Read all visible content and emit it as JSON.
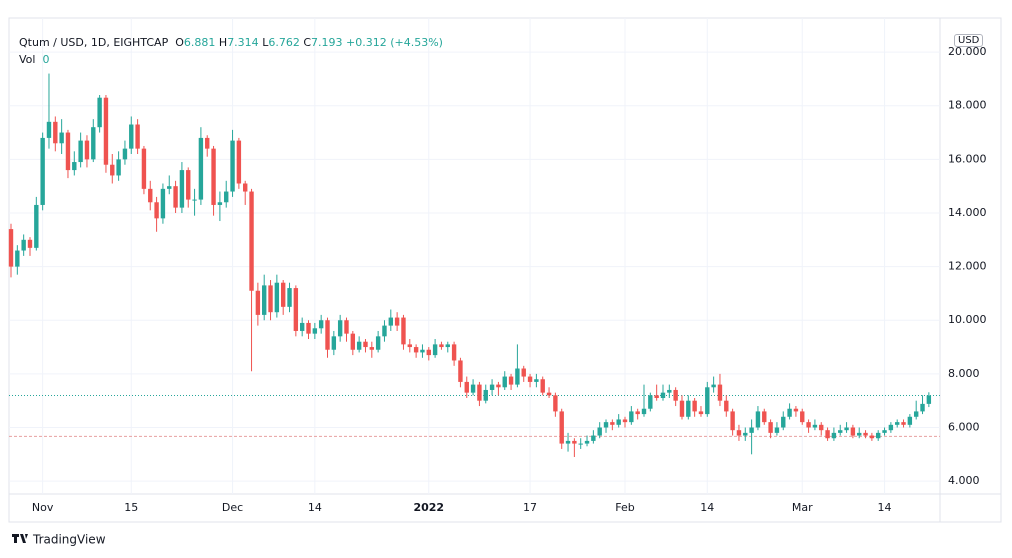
{
  "chart_data": {
    "type": "candlestick",
    "title": "Qtum / USD, 1D, EIGHTCAP",
    "ohlc_prefixes": [
      "O",
      "H",
      "L",
      "C"
    ],
    "change_label": "+0.312 (+4.53%)",
    "volume_label": "Vol",
    "volume": 0,
    "currency": "USD",
    "brand": "TradingView",
    "up_color": "#26a69a",
    "down_color": "#ef5350",
    "ylim": [
      3.52,
      20.75
    ],
    "yticks": [
      {
        "value": 4,
        "label": "4.000"
      },
      {
        "value": 6,
        "label": "6.000"
      },
      {
        "value": 8,
        "label": "8.000"
      },
      {
        "value": 10,
        "label": "10.000"
      },
      {
        "value": 12,
        "label": "12.000"
      },
      {
        "value": 14,
        "label": "14.000"
      },
      {
        "value": 16,
        "label": "16.000"
      },
      {
        "value": 18,
        "label": "18.000"
      },
      {
        "value": 20,
        "label": "20.000"
      }
    ],
    "grid": true,
    "horizontal_lines": [
      {
        "value": 5.67,
        "color": "#e8a0a0"
      }
    ],
    "categories": [
      null,
      null,
      null,
      null,
      null,
      "Nov",
      null,
      null,
      null,
      null,
      null,
      null,
      null,
      null,
      null,
      null,
      null,
      null,
      null,
      "15",
      null,
      null,
      null,
      null,
      null,
      null,
      null,
      null,
      null,
      null,
      null,
      null,
      null,
      null,
      null,
      "Dec",
      null,
      null,
      null,
      null,
      null,
      null,
      null,
      null,
      null,
      null,
      null,
      null,
      "14",
      null,
      null,
      null,
      null,
      null,
      null,
      null,
      null,
      null,
      null,
      null,
      null,
      null,
      null,
      null,
      null,
      null,
      "2022",
      null,
      null,
      null,
      null,
      null,
      null,
      null,
      null,
      null,
      null,
      null,
      null,
      null,
      null,
      null,
      "17",
      null,
      null,
      null,
      null,
      null,
      null,
      null,
      null,
      null,
      null,
      null,
      null,
      null,
      null,
      "Feb",
      null,
      null,
      null,
      null,
      null,
      null,
      null,
      null,
      null,
      null,
      null,
      null,
      "14",
      null,
      null,
      null,
      null,
      null,
      null,
      null,
      null,
      null,
      null,
      null,
      null,
      null,
      null,
      "Mar",
      null,
      null,
      null,
      null,
      null,
      null,
      null,
      null,
      null,
      null,
      null,
      null,
      "14",
      null,
      null,
      null,
      null,
      null,
      null,
      null
    ],
    "ohlc": [
      [
        13.4,
        13.6,
        11.6,
        12.0
      ],
      [
        12.0,
        12.8,
        11.7,
        12.6
      ],
      [
        12.6,
        13.2,
        12.4,
        13.0
      ],
      [
        13.0,
        13.1,
        12.4,
        12.7
      ],
      [
        12.7,
        14.6,
        12.6,
        14.3
      ],
      [
        14.3,
        17.0,
        14.1,
        16.8
      ],
      [
        16.8,
        19.2,
        16.4,
        17.4
      ],
      [
        17.4,
        17.6,
        16.3,
        16.6
      ],
      [
        16.6,
        17.5,
        16.2,
        17.0
      ],
      [
        17.0,
        17.1,
        15.3,
        15.6
      ],
      [
        15.6,
        16.3,
        15.4,
        15.9
      ],
      [
        15.9,
        17.0,
        15.7,
        16.7
      ],
      [
        16.7,
        16.9,
        15.7,
        16.0
      ],
      [
        16.0,
        17.5,
        15.9,
        17.2
      ],
      [
        17.2,
        18.4,
        17.0,
        18.3
      ],
      [
        18.3,
        18.4,
        15.5,
        15.8
      ],
      [
        15.8,
        16.2,
        15.1,
        15.4
      ],
      [
        15.4,
        16.3,
        15.2,
        16.0
      ],
      [
        16.0,
        16.7,
        15.8,
        16.4
      ],
      [
        16.4,
        17.6,
        16.2,
        17.3
      ],
      [
        17.3,
        17.5,
        16.2,
        16.4
      ],
      [
        16.4,
        16.5,
        14.7,
        14.9
      ],
      [
        14.9,
        15.2,
        14.1,
        14.4
      ],
      [
        14.4,
        14.6,
        13.3,
        13.8
      ],
      [
        13.8,
        15.1,
        13.6,
        14.9
      ],
      [
        14.9,
        15.4,
        14.7,
        15.0
      ],
      [
        15.0,
        15.2,
        14.0,
        14.2
      ],
      [
        14.2,
        15.9,
        14.0,
        15.6
      ],
      [
        15.6,
        15.7,
        14.2,
        14.5
      ],
      [
        14.5,
        14.9,
        13.9,
        14.5
      ],
      [
        14.5,
        17.2,
        14.3,
        16.8
      ],
      [
        16.8,
        16.9,
        16.1,
        16.4
      ],
      [
        16.4,
        16.5,
        13.9,
        14.3
      ],
      [
        14.3,
        14.8,
        13.7,
        14.4
      ],
      [
        14.4,
        15.2,
        14.2,
        14.8
      ],
      [
        14.8,
        17.1,
        14.6,
        16.7
      ],
      [
        16.7,
        16.8,
        14.9,
        15.1
      ],
      [
        15.1,
        15.2,
        14.3,
        14.8
      ],
      [
        14.8,
        14.9,
        8.1,
        11.1
      ],
      [
        11.1,
        11.4,
        9.8,
        10.2
      ],
      [
        10.2,
        11.7,
        10.0,
        11.3
      ],
      [
        11.3,
        11.5,
        10.0,
        10.3
      ],
      [
        10.3,
        11.7,
        10.1,
        11.4
      ],
      [
        11.4,
        11.5,
        10.2,
        10.5
      ],
      [
        10.5,
        11.4,
        10.3,
        11.2
      ],
      [
        11.2,
        11.3,
        9.4,
        9.6
      ],
      [
        9.6,
        10.1,
        9.4,
        9.9
      ],
      [
        9.9,
        10.0,
        9.3,
        9.5
      ],
      [
        9.5,
        9.9,
        9.3,
        9.7
      ],
      [
        9.7,
        10.2,
        9.5,
        10.0
      ],
      [
        10.0,
        10.1,
        8.6,
        8.9
      ],
      [
        8.9,
        9.6,
        8.7,
        9.4
      ],
      [
        9.4,
        10.2,
        9.2,
        10.0
      ],
      [
        10.0,
        10.1,
        9.2,
        9.5
      ],
      [
        9.5,
        9.6,
        8.7,
        8.9
      ],
      [
        8.9,
        9.4,
        8.8,
        9.2
      ],
      [
        9.2,
        9.3,
        8.8,
        9.0
      ],
      [
        9.0,
        9.2,
        8.6,
        8.9
      ],
      [
        8.9,
        9.6,
        8.8,
        9.4
      ],
      [
        9.4,
        10.0,
        9.2,
        9.8
      ],
      [
        9.8,
        10.4,
        9.6,
        10.1
      ],
      [
        10.1,
        10.3,
        9.6,
        9.8
      ],
      [
        10.1,
        10.2,
        8.9,
        9.1
      ],
      [
        9.1,
        9.3,
        8.8,
        9.0
      ],
      [
        9.0,
        9.1,
        8.6,
        8.8
      ],
      [
        8.8,
        9.1,
        8.6,
        8.9
      ],
      [
        8.9,
        9.0,
        8.5,
        8.7
      ],
      [
        8.7,
        9.3,
        8.6,
        9.1
      ],
      [
        9.1,
        9.2,
        8.9,
        9.0
      ],
      [
        9.0,
        9.2,
        8.8,
        9.1
      ],
      [
        9.1,
        9.2,
        8.3,
        8.5
      ],
      [
        8.5,
        8.6,
        7.5,
        7.7
      ],
      [
        7.7,
        7.9,
        7.1,
        7.3
      ],
      [
        7.3,
        7.8,
        7.2,
        7.6
      ],
      [
        7.6,
        7.7,
        6.8,
        7.0
      ],
      [
        7.0,
        7.6,
        6.9,
        7.4
      ],
      [
        7.4,
        7.8,
        7.2,
        7.6
      ],
      [
        7.6,
        7.7,
        7.2,
        7.5
      ],
      [
        7.5,
        8.1,
        7.4,
        7.9
      ],
      [
        7.9,
        8.0,
        7.4,
        7.6
      ],
      [
        7.6,
        9.1,
        7.5,
        8.2
      ],
      [
        8.2,
        8.3,
        7.7,
        7.9
      ],
      [
        7.9,
        8.0,
        7.5,
        7.7
      ],
      [
        7.7,
        8.0,
        7.5,
        7.8
      ],
      [
        7.8,
        7.9,
        7.2,
        7.3
      ],
      [
        7.3,
        7.5,
        7.1,
        7.2
      ],
      [
        7.2,
        7.3,
        6.4,
        6.6
      ],
      [
        6.6,
        6.7,
        5.2,
        5.4
      ],
      [
        5.4,
        5.8,
        5.1,
        5.5
      ],
      [
        5.5,
        5.6,
        4.9,
        5.4
      ],
      [
        5.4,
        5.6,
        5.2,
        5.4
      ],
      [
        5.4,
        5.7,
        5.3,
        5.5
      ],
      [
        5.5,
        5.9,
        5.4,
        5.7
      ],
      [
        5.7,
        6.2,
        5.6,
        6.0
      ],
      [
        6.0,
        6.3,
        5.8,
        6.2
      ],
      [
        6.2,
        6.3,
        5.9,
        6.1
      ],
      [
        6.1,
        6.5,
        6.0,
        6.3
      ],
      [
        6.3,
        6.4,
        6.0,
        6.2
      ],
      [
        6.2,
        6.8,
        6.1,
        6.6
      ],
      [
        6.6,
        6.7,
        6.3,
        6.5
      ],
      [
        6.5,
        7.6,
        6.4,
        6.7
      ],
      [
        6.7,
        7.3,
        6.6,
        7.2
      ],
      [
        7.2,
        7.6,
        7.0,
        7.1
      ],
      [
        7.1,
        7.6,
        7.0,
        7.3
      ],
      [
        7.3,
        7.6,
        7.1,
        7.4
      ],
      [
        7.4,
        7.5,
        6.8,
        7.0
      ],
      [
        7.0,
        7.2,
        6.3,
        6.4
      ],
      [
        6.4,
        7.2,
        6.3,
        7.0
      ],
      [
        7.0,
        7.1,
        6.4,
        6.6
      ],
      [
        6.6,
        6.8,
        6.4,
        6.5
      ],
      [
        6.5,
        7.7,
        6.4,
        7.5
      ],
      [
        7.5,
        7.9,
        7.3,
        7.6
      ],
      [
        7.6,
        8.0,
        6.8,
        7.0
      ],
      [
        7.0,
        7.2,
        6.4,
        6.6
      ],
      [
        6.6,
        6.7,
        5.7,
        5.9
      ],
      [
        5.9,
        6.1,
        5.5,
        5.7
      ],
      [
        5.7,
        6.0,
        5.5,
        5.8
      ],
      [
        5.8,
        6.3,
        5.0,
        6.0
      ],
      [
        6.0,
        6.8,
        5.9,
        6.6
      ],
      [
        6.6,
        6.7,
        6.1,
        6.2
      ],
      [
        6.2,
        6.3,
        5.6,
        5.8
      ],
      [
        5.8,
        6.2,
        5.7,
        6.0
      ],
      [
        6.0,
        6.6,
        5.9,
        6.4
      ],
      [
        6.4,
        6.9,
        6.3,
        6.7
      ],
      [
        6.7,
        6.8,
        6.4,
        6.6
      ],
      [
        6.6,
        6.7,
        6.1,
        6.2
      ],
      [
        6.2,
        6.3,
        5.8,
        6.0
      ],
      [
        6.0,
        6.3,
        5.9,
        6.1
      ],
      [
        6.1,
        6.2,
        5.7,
        5.9
      ],
      [
        5.9,
        6.0,
        5.5,
        5.6
      ],
      [
        5.6,
        6.0,
        5.5,
        5.8
      ],
      [
        5.8,
        6.1,
        5.7,
        5.9
      ],
      [
        5.9,
        6.2,
        5.8,
        6.0
      ],
      [
        6.0,
        6.1,
        5.6,
        5.7
      ],
      [
        5.7,
        6.0,
        5.6,
        5.8
      ],
      [
        5.8,
        5.9,
        5.6,
        5.7
      ],
      [
        5.7,
        5.8,
        5.5,
        5.6
      ],
      [
        5.6,
        5.9,
        5.5,
        5.8
      ],
      [
        5.8,
        6.0,
        5.7,
        5.9
      ],
      [
        5.9,
        6.2,
        5.8,
        6.1
      ],
      [
        6.1,
        6.3,
        6.0,
        6.2
      ],
      [
        6.2,
        6.3,
        6.0,
        6.1
      ],
      [
        6.1,
        6.5,
        6.0,
        6.4
      ],
      [
        6.4,
        7.0,
        6.3,
        6.6
      ],
      [
        6.6,
        7.2,
        6.5,
        6.881
      ],
      [
        6.881,
        7.314,
        6.762,
        7.193
      ]
    ]
  }
}
